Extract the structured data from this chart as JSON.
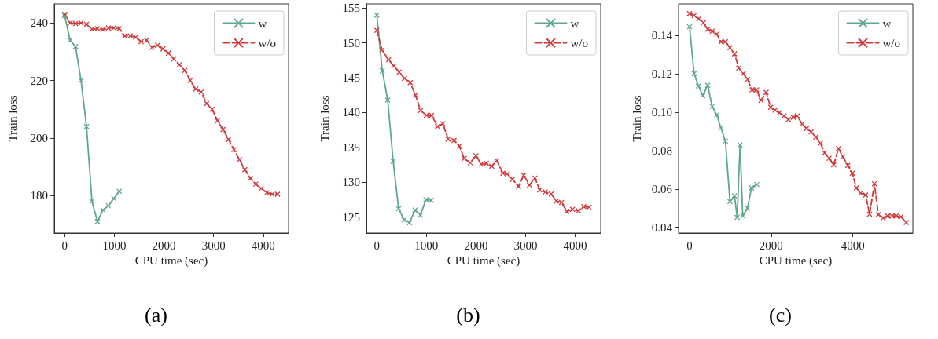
{
  "chart_data": [
    {
      "type": "line",
      "xlabel": "CPU time (sec)",
      "ylabel": "Train loss",
      "annotations": [
        "(a)"
      ],
      "xlim": [
        -210,
        4510
      ],
      "ylim": [
        167,
        246.6
      ],
      "xticks": [
        0,
        1000,
        2000,
        3000,
        4000
      ],
      "yticks": [
        180,
        200,
        220,
        240
      ],
      "grid": false,
      "legend": "top right",
      "marker": "cross",
      "series": [
        {
          "name": "w",
          "color": "#5fa88a",
          "line_style": "solid",
          "x": [
            0,
            110,
            220,
            330,
            440,
            550,
            660,
            770,
            880,
            990,
            1100
          ],
          "values": [
            242.5,
            234,
            231.8,
            220,
            204,
            178,
            171,
            175,
            176.5,
            179,
            181.5
          ]
        },
        {
          "name": "w/o",
          "color": "#d03a3c",
          "line_style": "dashed",
          "x": [
            0,
            110,
            220,
            330,
            440,
            550,
            660,
            770,
            880,
            990,
            1100,
            1210,
            1320,
            1430,
            1540,
            1650,
            1760,
            1870,
            1980,
            2090,
            2200,
            2310,
            2420,
            2530,
            2640,
            2750,
            2860,
            2970,
            3080,
            3190,
            3300,
            3410,
            3520,
            3630,
            3740,
            3850,
            3960,
            4070,
            4180,
            4290
          ],
          "values": [
            243,
            240,
            239.8,
            240,
            239.5,
            237.8,
            238,
            237.7,
            238.2,
            238.3,
            238,
            235.5,
            235.5,
            235,
            233.5,
            234,
            231.5,
            232.2,
            231,
            229.5,
            227.5,
            225.5,
            223.5,
            220,
            217,
            216,
            212,
            210,
            206,
            203,
            199.5,
            196,
            192.5,
            189,
            186,
            184,
            182.5,
            181,
            180.5,
            180.5
          ]
        }
      ]
    },
    {
      "type": "line",
      "xlabel": "CPU time (sec)",
      "ylabel": "Train loss",
      "annotations": [
        "(b)"
      ],
      "xlim": [
        -210,
        4515
      ],
      "ylim": [
        122.7,
        155.6
      ],
      "xticks": [
        0,
        1000,
        2000,
        3000,
        4000
      ],
      "yticks": [
        125,
        130,
        135,
        140,
        145,
        150,
        155
      ],
      "grid": false,
      "legend": "top right",
      "marker": "cross",
      "series": [
        {
          "name": "w",
          "color": "#5fa88a",
          "line_style": "solid",
          "x": [
            0,
            110,
            220,
            330,
            440,
            550,
            660,
            770,
            880,
            990,
            1100
          ],
          "values": [
            154,
            146,
            141.8,
            133,
            126.2,
            124.6,
            124.2,
            126,
            125.3,
            127.5,
            127.4
          ]
        },
        {
          "name": "w/o",
          "color": "#d03a3c",
          "line_style": "dashed",
          "x": [
            0,
            105,
            237,
            342,
            453,
            558,
            674,
            779,
            884,
            1000,
            1105,
            1226,
            1332,
            1437,
            1558,
            1663,
            1763,
            1884,
            2000,
            2105,
            2211,
            2316,
            2421,
            2542,
            2632,
            2737,
            2858,
            2963,
            3079,
            3189,
            3284,
            3400,
            3516,
            3621,
            3726,
            3832,
            3947,
            4068,
            4174,
            4279
          ],
          "values": [
            151.8,
            149,
            147.6,
            146.7,
            145.8,
            144.9,
            144.3,
            142.5,
            140.3,
            139.6,
            139.6,
            138,
            138.4,
            136.2,
            136,
            135.2,
            133.4,
            132.8,
            133.8,
            132.6,
            132.7,
            132.3,
            133.1,
            131.3,
            131.2,
            130.4,
            129.4,
            131,
            129.6,
            130.6,
            128.9,
            128.6,
            128.3,
            127.3,
            127.1,
            125.8,
            126.1,
            125.9,
            126.5,
            126.4
          ]
        }
      ]
    },
    {
      "type": "line",
      "xlabel": "CPU time (sec)",
      "ylabel": "Train loss",
      "annotations": [
        "(c)"
      ],
      "xlim": [
        -270,
        5470
      ],
      "ylim": [
        0.037,
        0.1564
      ],
      "xticks": [
        0,
        2000,
        4000
      ],
      "yticks": [
        0.04,
        0.06,
        0.08,
        {
          "value": 0.1,
          "label": "0.10"
        },
        0.12,
        0.14
      ],
      "grid": false,
      "legend": "top right",
      "marker": "cross",
      "series": [
        {
          "name": "w",
          "color": "#5fa88a",
          "line_style": "solid",
          "x": [
            0,
            111,
            215,
            326,
            443,
            554,
            665,
            769,
            879,
            990,
            1101,
            1166,
            1238,
            1303,
            1420,
            1518,
            1648
          ],
          "values": [
            0.1445,
            0.1201,
            0.1137,
            0.1086,
            0.114,
            0.103,
            0.0986,
            0.0918,
            0.0849,
            0.0534,
            0.0564,
            0.0452,
            0.0829,
            0.0459,
            0.05,
            0.0605,
            0.0623
          ]
        },
        {
          "name": "w/o",
          "color": "#d03a3c",
          "line_style": "dashed",
          "x": [
            0,
            111,
            228,
            339,
            443,
            554,
            665,
            769,
            879,
            990,
            1101,
            1205,
            1316,
            1420,
            1531,
            1642,
            1752,
            1876,
            1987,
            2098,
            2202,
            2313,
            2423,
            2541,
            2638,
            2756,
            2866,
            2977,
            3094,
            3205,
            3309,
            3420,
            3531,
            3648,
            3759,
            3876,
            3987,
            4085,
            4189,
            4313,
            4410,
            4528,
            4625,
            4743,
            4853,
            4964,
            5062,
            5179,
            5309
          ],
          "values": [
            0.1514,
            0.1504,
            0.1486,
            0.1466,
            0.1432,
            0.1422,
            0.1407,
            0.1367,
            0.1367,
            0.1336,
            0.1304,
            0.123,
            0.1201,
            0.1171,
            0.1116,
            0.1116,
            0.1062,
            0.1103,
            0.1025,
            0.1011,
            0.0997,
            0.098,
            0.0962,
            0.0973,
            0.098,
            0.0938,
            0.0915,
            0.0897,
            0.087,
            0.0838,
            0.0788,
            0.076,
            0.0726,
            0.0811,
            0.0767,
            0.0723,
            0.0682,
            0.0605,
            0.0578,
            0.0568,
            0.0468,
            0.0627,
            0.0466,
            0.0449,
            0.0459,
            0.0459,
            0.0459,
            0.0455,
            0.0425
          ]
        }
      ]
    }
  ]
}
